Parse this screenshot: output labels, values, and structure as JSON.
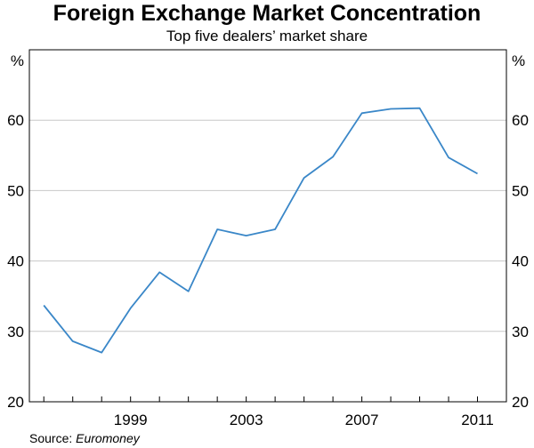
{
  "chart_data": {
    "type": "line",
    "title": "Foreign Exchange Market Concentration",
    "subtitle": "Top five dealers’ market share",
    "ylabel_left": "%",
    "ylabel_right": "%",
    "xlabel": "",
    "ylim": [
      20,
      70
    ],
    "yticks": [
      20,
      30,
      40,
      50,
      60
    ],
    "xlim": [
      1995.5,
      2012.0
    ],
    "xticks": [
      1999,
      2003,
      2007,
      2011
    ],
    "grid": "horizontal",
    "line_color": "#3a87c8",
    "series": [
      {
        "name": "Top five dealers’ market share",
        "x": [
          1996,
          1997,
          1998,
          1999,
          2000,
          2001,
          2002,
          2003,
          2004,
          2005,
          2006,
          2007,
          2008,
          2009,
          2010,
          2011
        ],
        "values": [
          33.7,
          28.6,
          27.0,
          33.3,
          38.4,
          35.7,
          44.5,
          43.6,
          44.5,
          51.8,
          54.8,
          61.0,
          61.6,
          61.7,
          54.7,
          52.4
        ]
      }
    ]
  },
  "source": {
    "prefix": "Source: ",
    "name": "Euromoney"
  }
}
